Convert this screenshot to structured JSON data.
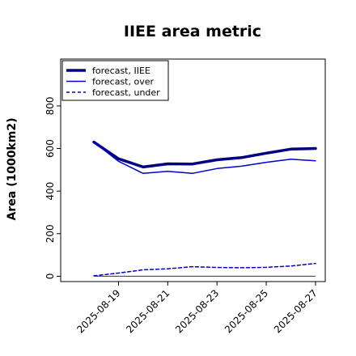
{
  "chart_data": {
    "type": "line",
    "title": "IIEE area metric",
    "ylabel": "Area (1000km2)",
    "xlabel": "",
    "x": [
      "2025-08-18",
      "2025-08-19",
      "2025-08-20",
      "2025-08-21",
      "2025-08-22",
      "2025-08-23",
      "2025-08-24",
      "2025-08-25",
      "2025-08-26",
      "2025-08-27"
    ],
    "x_ticks": [
      "2025-08-19",
      "2025-08-21",
      "2025-08-23",
      "2025-08-25",
      "2025-08-27"
    ],
    "highlight_tick": "2025-08-19",
    "highlight_color": "#228B22",
    "ylim": [
      -25,
      1020
    ],
    "y_ticks": [
      0,
      200,
      400,
      600,
      800
    ],
    "grid": false,
    "legend_position": "top-left",
    "baseline": 0,
    "series": [
      {
        "name": "forecast, IIEE",
        "color": "#00007f",
        "style": "solid",
        "weight": "thick",
        "values": [
          630,
          552,
          513,
          528,
          527,
          547,
          557,
          578,
          597,
          600
        ]
      },
      {
        "name": "forecast, over",
        "color": "#0000cc",
        "style": "solid",
        "weight": "normal",
        "values": [
          630,
          540,
          483,
          493,
          483,
          506,
          517,
          535,
          550,
          542
        ]
      },
      {
        "name": "forecast, under",
        "color": "#0000cc",
        "style": "dashed",
        "weight": "normal",
        "values": [
          2,
          15,
          30,
          35,
          45,
          41,
          40,
          42,
          48,
          60
        ]
      }
    ]
  }
}
